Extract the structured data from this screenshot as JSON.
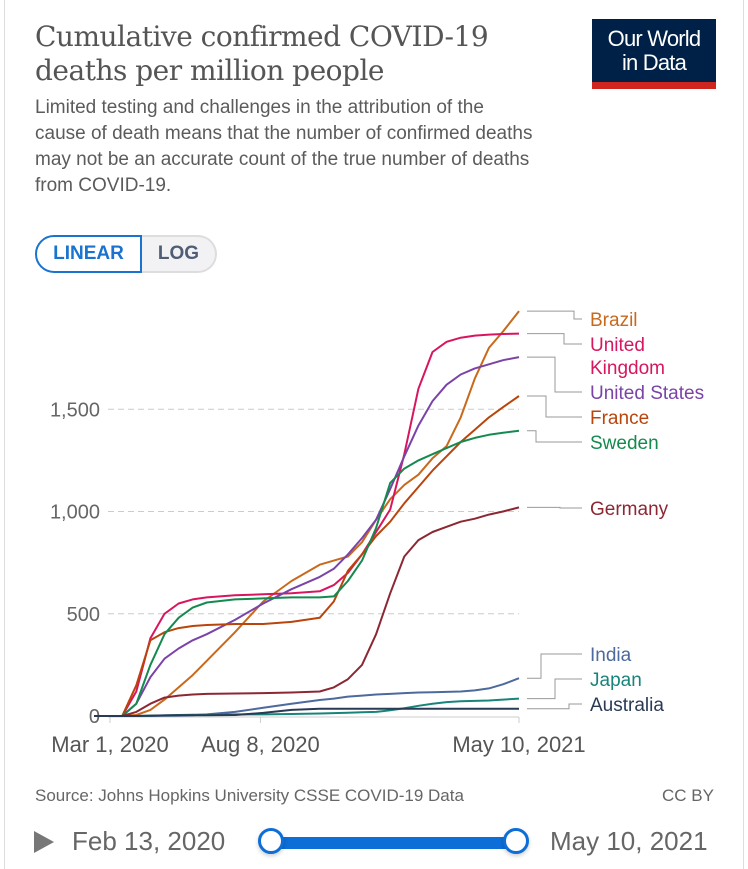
{
  "header": {
    "title": "Cumulative confirmed COVID-19 deaths per million people",
    "subtitle": "Limited testing and challenges in the attribution of the cause of death means that the number of confirmed deaths may not be an accurate count of the true number of deaths from COVID-19.",
    "logo_line1": "Our World",
    "logo_line2": "in Data"
  },
  "scale_toggle": {
    "options": [
      "LINEAR",
      "LOG"
    ],
    "selected": "LINEAR"
  },
  "footer": {
    "source": "Source: Johns Hopkins University CSSE COVID-19 Data",
    "license": "CC BY"
  },
  "timeline": {
    "play_icon": "play-icon",
    "start_label": "Feb 13, 2020",
    "end_label": "May 10, 2021",
    "start_fraction": 0,
    "end_fraction": 1
  },
  "colors": {
    "accent": "#0d6ed8",
    "logo_bg": "#002147",
    "logo_bar": "#ce261e"
  },
  "chart_data": {
    "type": "line",
    "title": "Cumulative confirmed COVID-19 deaths per million people",
    "xlabel": "",
    "ylabel": "",
    "x_range_days": [
      0,
      452
    ],
    "x_start_date": "Feb 13, 2020",
    "x_ticks": [
      {
        "label": "Mar 1, 2020",
        "day": 17
      },
      {
        "label": "Aug 8, 2020",
        "day": 177
      },
      {
        "label": "May 10, 2021",
        "day": 452
      }
    ],
    "y_ticks": [
      {
        "label": "0",
        "value": 0
      },
      {
        "label": "500",
        "value": 500
      },
      {
        "label": "1,000",
        "value": 1000
      },
      {
        "label": "1,500",
        "value": 1500
      }
    ],
    "ylim": [
      0,
      1980
    ],
    "grid": "horizontal-dashed",
    "legend": "right (line end labels)",
    "x_days": [
      0,
      30,
      45,
      60,
      75,
      90,
      105,
      120,
      150,
      180,
      210,
      240,
      255,
      270,
      285,
      300,
      315,
      330,
      345,
      360,
      375,
      390,
      405,
      420,
      435,
      452
    ],
    "series": [
      {
        "name": "Brazil",
        "label_lines": [
          "Brazil"
        ],
        "color": "#c8691c",
        "values": [
          0,
          0,
          5,
          30,
          80,
          140,
          200,
          270,
          410,
          560,
          660,
          740,
          760,
          780,
          850,
          960,
          1060,
          1130,
          1180,
          1260,
          1320,
          1460,
          1650,
          1800,
          1880,
          1980
        ]
      },
      {
        "name": "United Kingdom",
        "label_lines": [
          "United",
          "Kingdom"
        ],
        "color": "#d8155f",
        "values": [
          0,
          0,
          120,
          380,
          500,
          550,
          570,
          580,
          590,
          595,
          600,
          610,
          640,
          700,
          790,
          900,
          1010,
          1280,
          1600,
          1780,
          1830,
          1850,
          1860,
          1865,
          1868,
          1870
        ]
      },
      {
        "name": "United States",
        "label_lines": [
          "United States"
        ],
        "color": "#7a43a8",
        "values": [
          0,
          0,
          60,
          190,
          280,
          330,
          370,
          400,
          470,
          550,
          620,
          680,
          720,
          790,
          870,
          960,
          1110,
          1270,
          1420,
          1540,
          1620,
          1670,
          1700,
          1720,
          1740,
          1755
        ]
      },
      {
        "name": "France",
        "label_lines": [
          "France"
        ],
        "color": "#b9450b",
        "values": [
          0,
          0,
          150,
          370,
          410,
          430,
          440,
          445,
          450,
          450,
          460,
          480,
          560,
          710,
          790,
          880,
          950,
          1040,
          1120,
          1200,
          1270,
          1340,
          1400,
          1460,
          1510,
          1565
        ]
      },
      {
        "name": "Sweden",
        "label_lines": [
          "Sweden"
        ],
        "color": "#158a4f",
        "values": [
          0,
          0,
          60,
          250,
          400,
          480,
          530,
          555,
          570,
          575,
          580,
          580,
          585,
          660,
          760,
          920,
          1140,
          1210,
          1250,
          1280,
          1310,
          1340,
          1360,
          1375,
          1385,
          1395
        ]
      },
      {
        "name": "Germany",
        "label_lines": [
          "Germany"
        ],
        "color": "#8c2734",
        "values": [
          0,
          0,
          20,
          60,
          90,
          100,
          105,
          108,
          110,
          112,
          115,
          120,
          140,
          180,
          250,
          400,
          600,
          780,
          860,
          900,
          925,
          950,
          965,
          985,
          1000,
          1020
        ]
      },
      {
        "name": "India",
        "label_lines": [
          "India"
        ],
        "color": "#4c6a9c",
        "values": [
          0,
          0,
          0,
          0,
          1,
          2,
          4,
          8,
          20,
          40,
          60,
          78,
          85,
          95,
          100,
          105,
          108,
          112,
          115,
          116,
          118,
          120,
          125,
          135,
          155,
          185
        ]
      },
      {
        "name": "Japan",
        "label_lines": [
          "Japan"
        ],
        "color": "#18847a",
        "values": [
          0,
          0,
          0,
          1,
          3,
          5,
          6,
          7,
          8,
          8,
          10,
          12,
          14,
          16,
          18,
          20,
          28,
          38,
          50,
          60,
          68,
          72,
          74,
          76,
          80,
          85
        ]
      },
      {
        "name": "Australia",
        "label_lines": [
          "Australia"
        ],
        "color": "#2a3a55",
        "values": [
          0,
          0,
          0,
          2,
          3,
          4,
          4,
          4,
          5,
          15,
          30,
          35,
          35,
          35,
          35,
          35,
          35,
          35,
          35,
          35,
          35,
          35,
          35,
          35,
          35,
          35
        ]
      }
    ]
  }
}
